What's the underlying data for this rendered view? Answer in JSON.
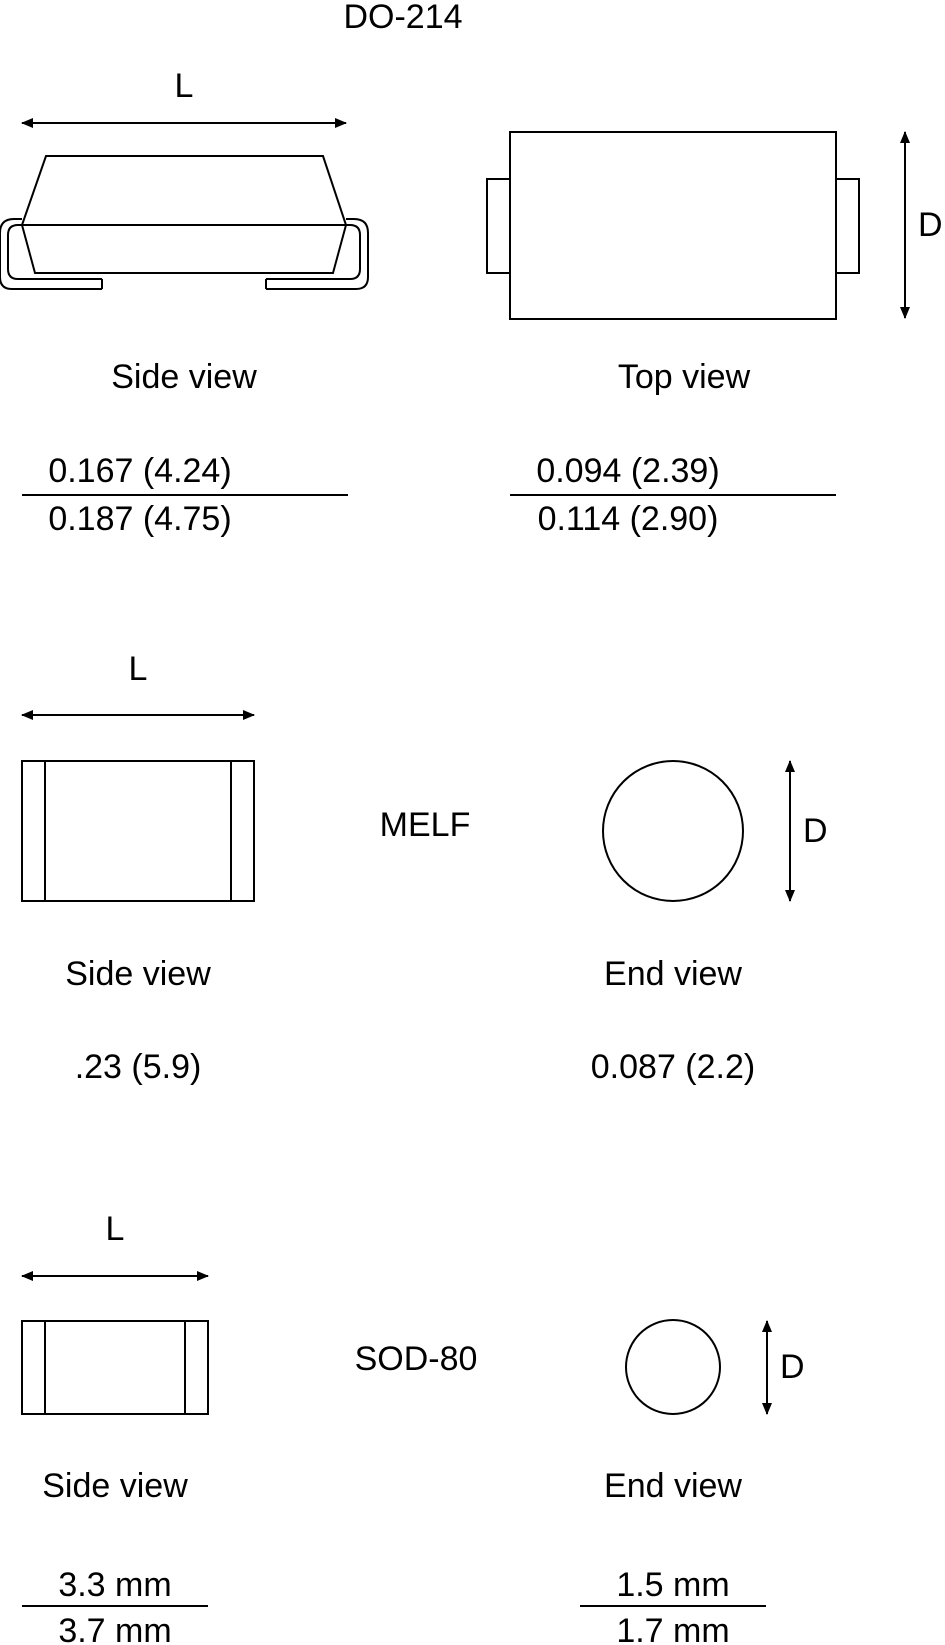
{
  "do214": {
    "package_name": "DO-214",
    "length_symbol": "L",
    "diameter_symbol": "D",
    "side_label": "Side view",
    "top_label": "Top view",
    "length_min": "0.167 (4.24)",
    "length_max": "0.187 (4.75)",
    "diameter_min": "0.094 (2.39)",
    "diameter_max": "0.114 (2.90)"
  },
  "melf": {
    "package_name": "MELF",
    "length_symbol": "L",
    "diameter_symbol": "D",
    "side_label": "Side view",
    "end_label": "End view",
    "length_value": ".23 (5.9)",
    "diameter_value": "0.087 (2.2)"
  },
  "sod80": {
    "package_name": "SOD-80",
    "length_symbol": "L",
    "diameter_symbol": "D",
    "side_label": "Side view",
    "end_label": "End view",
    "length_min": "3.3 mm",
    "length_max": "3.7 mm",
    "diameter_min": "1.5 mm",
    "diameter_max": "1.7 mm"
  }
}
